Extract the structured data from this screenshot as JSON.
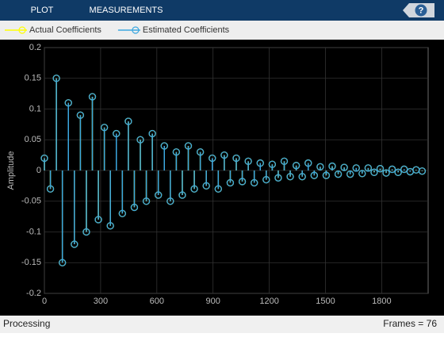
{
  "toolbar": {
    "tabs": [
      "PLOT",
      "MEASUREMENTS"
    ],
    "help": "?"
  },
  "chart_data": {
    "type": "stem",
    "y_label": "Amplitude",
    "x": [
      0,
      32,
      64,
      96,
      128,
      160,
      192,
      224,
      256,
      288,
      320,
      352,
      384,
      416,
      448,
      480,
      512,
      544,
      576,
      608,
      640,
      672,
      704,
      736,
      768,
      800,
      832,
      864,
      896,
      928,
      960,
      992,
      1024,
      1056,
      1088,
      1120,
      1152,
      1184,
      1216,
      1248,
      1280,
      1312,
      1344,
      1376,
      1408,
      1440,
      1472,
      1504,
      1536,
      1568,
      1600,
      1632,
      1664,
      1696,
      1728,
      1760,
      1792,
      1824,
      1856,
      1888,
      1920,
      1952,
      1984,
      2016
    ],
    "series": [
      {
        "name": "Actual Coefficients",
        "color": "#ffff00",
        "values": [
          0.02,
          -0.03,
          0.15,
          -0.15,
          0.11,
          -0.12,
          0.09,
          -0.1,
          0.12,
          -0.08,
          0.07,
          -0.09,
          0.06,
          -0.07,
          0.08,
          -0.06,
          0.05,
          -0.05,
          0.06,
          -0.04,
          0.04,
          -0.05,
          0.03,
          -0.04,
          0.04,
          -0.03,
          0.03,
          -0.025,
          0.02,
          -0.03,
          0.025,
          -0.02,
          0.02,
          -0.018,
          0.015,
          -0.02,
          0.012,
          -0.015,
          0.01,
          -0.012,
          0.015,
          -0.01,
          0.008,
          -0.01,
          0.012,
          -0.008,
          0.006,
          -0.008,
          0.007,
          -0.006,
          0.005,
          -0.006,
          0.004,
          -0.005,
          0.004,
          -0.003,
          0.003,
          -0.004,
          0.002,
          -0.003,
          0.002,
          -0.002,
          0.001,
          -0.001
        ]
      },
      {
        "name": "Estimated Coefficients",
        "color": "#3ba7e0",
        "values": [
          0.02,
          -0.03,
          0.15,
          -0.15,
          0.11,
          -0.12,
          0.09,
          -0.1,
          0.12,
          -0.08,
          0.07,
          -0.09,
          0.06,
          -0.07,
          0.08,
          -0.06,
          0.05,
          -0.05,
          0.06,
          -0.04,
          0.04,
          -0.05,
          0.03,
          -0.04,
          0.04,
          -0.03,
          0.03,
          -0.025,
          0.02,
          -0.03,
          0.025,
          -0.02,
          0.02,
          -0.018,
          0.015,
          -0.02,
          0.012,
          -0.015,
          0.01,
          -0.012,
          0.015,
          -0.01,
          0.008,
          -0.01,
          0.012,
          -0.008,
          0.006,
          -0.008,
          0.007,
          -0.006,
          0.005,
          -0.006,
          0.004,
          -0.005,
          0.004,
          -0.003,
          0.003,
          -0.004,
          0.002,
          -0.003,
          0.002,
          -0.002,
          0.001,
          -0.001
        ]
      }
    ],
    "xlim": [
      0,
      2048
    ],
    "xticks": [
      0,
      300,
      600,
      900,
      1200,
      1500,
      1800
    ],
    "ylim": [
      -0.2,
      0.2
    ],
    "yticks": [
      -0.2,
      -0.15,
      -0.1,
      -0.05,
      0,
      0.05,
      0.1,
      0.15,
      0.2
    ],
    "grid": true
  },
  "status_bar": {
    "left": "Processing",
    "right": "Frames = 76"
  }
}
